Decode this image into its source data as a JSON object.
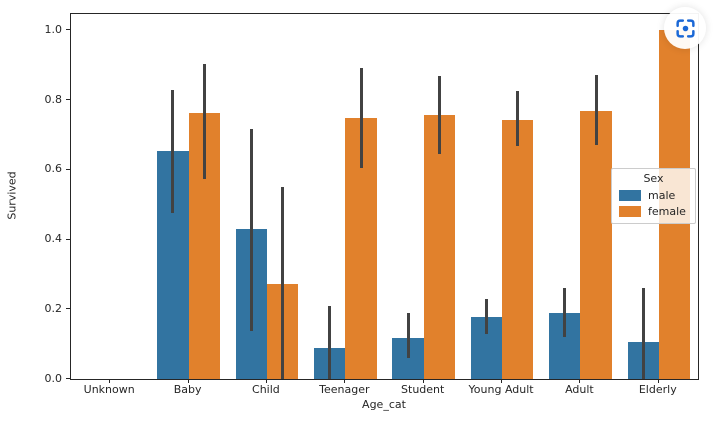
{
  "chart_data": {
    "type": "bar",
    "title": "",
    "xlabel": "Age_cat",
    "ylabel": "Survived",
    "categories": [
      "Unknown",
      "Baby",
      "Child",
      "Teenager",
      "Student",
      "Young Adult",
      "Adult",
      "Elderly"
    ],
    "series": [
      {
        "name": "male",
        "color": "#3274a1",
        "values": [
          0,
          0.653,
          0.43,
          0.089,
          0.118,
          0.178,
          0.19,
          0.105
        ],
        "ci_low": [
          null,
          0.476,
          0.138,
          0.0,
          0.061,
          0.13,
          0.12,
          0.0
        ],
        "ci_high": [
          null,
          0.828,
          0.716,
          0.209,
          0.19,
          0.231,
          0.262,
          0.262
        ]
      },
      {
        "name": "female",
        "color": "#e1812c",
        "values": [
          0,
          0.762,
          0.272,
          0.749,
          0.758,
          0.744,
          0.77,
          1.0
        ],
        "ci_low": [
          null,
          0.573,
          0.0,
          0.605,
          0.644,
          0.668,
          0.67,
          null
        ],
        "ci_high": [
          null,
          0.903,
          0.55,
          0.892,
          0.868,
          0.825,
          0.871,
          null
        ]
      }
    ],
    "y_ticks": [
      "0.0",
      "0.2",
      "0.4",
      "0.6",
      "0.8",
      "1.0"
    ],
    "ylim": [
      0,
      1.047
    ],
    "grid": false,
    "error_bar_color": "#424242",
    "legend": {
      "title": "Sex",
      "position": "center right",
      "entries": [
        "male",
        "female"
      ]
    }
  },
  "overlay": {
    "capture_icon": "screenshot-capture-lens",
    "capture_icon_color": "#1b68d6"
  }
}
